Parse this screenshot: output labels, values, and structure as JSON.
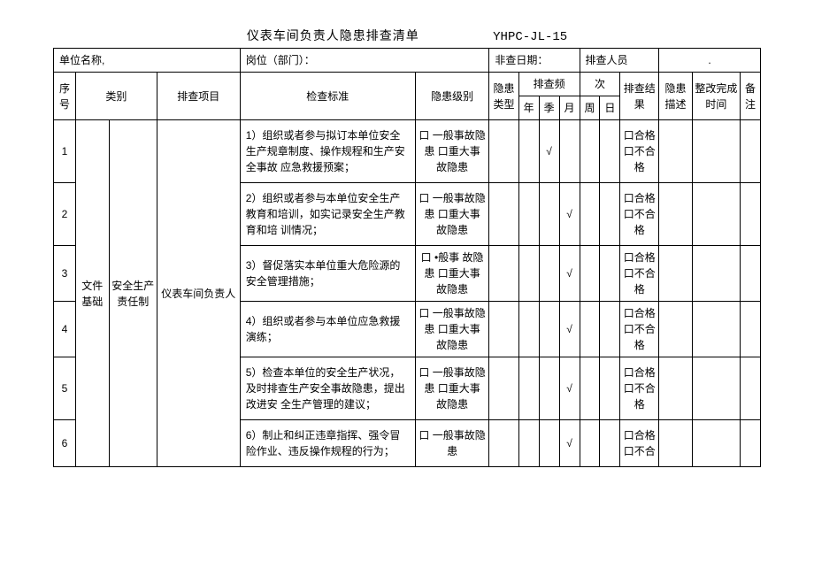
{
  "title": "仪表车间负责人隐患排查清单",
  "doc_code": "YHPC-JL-15",
  "header_labels": {
    "unit_name": "单位名称,",
    "position": "岗位（部门）：",
    "inspect_date": "非查日期：",
    "inspector": "排查人员"
  },
  "columns": {
    "seq": "序号",
    "category": "类别",
    "project": "排查项目",
    "standard": "检查标准",
    "level": "隐患级别",
    "type": "隐患类型",
    "freq": "排查频",
    "freq2": "次",
    "freq_y": "年",
    "freq_q": "季",
    "freq_m": "月",
    "freq_w": "周",
    "freq_d": "日",
    "result": "排查结果",
    "desc": "隐患描述",
    "complete_time": "整改完成 时间",
    "note": "备注"
  },
  "category_group": "文件基础",
  "item_group": "安全生产责任制",
  "project_group": "仪表车间负责人",
  "level_text_a": "口 一般事故隐患  口重大事 故隐患",
  "level_text_b": "口 •般事 故隐患 口重大事 故隐患",
  "level_text_c": "口 一般事故隐患 口重大事 故隐患",
  "level_text_d": "口 一般事故隐患",
  "result_text": "口合格 口不合格",
  "result_text_short": "口合格 口不合",
  "check_mark": "√",
  "rows": [
    {
      "seq": 1,
      "standard": "1）组织或者参与拟订本单位安全生产规章制度、操作规程和生产安全事故 应急救援预案；",
      "level_key": "level_text_a",
      "freq_col": "q",
      "result_key": "result_text"
    },
    {
      "seq": 2,
      "standard": "2）组织或者参与本单位安全生产教育和培训，如实记录安全生产教育和培 训情况；",
      "level_key": "level_text_a",
      "freq_col": "m",
      "result_key": "result_text"
    },
    {
      "seq": 3,
      "standard": "3）督促落实本单位重大危险源的安全管理措施；",
      "level_key": "level_text_b",
      "freq_col": "m",
      "result_key": "result_text"
    },
    {
      "seq": 4,
      "standard": "4）组织或者参与本单位应急救援演练；",
      "level_key": "level_text_a",
      "freq_col": "m",
      "result_key": "result_text"
    },
    {
      "seq": 5,
      "standard": "5）检查本单位的安全生产状况，及时排查生产安全事故隐患，提出改进安 全生产管理的建议；",
      "level_key": "level_text_c",
      "freq_col": "m",
      "result_key": "result_text"
    },
    {
      "seq": 6,
      "standard": "6）制止和纠正违章指挥、强令冒险作业、违反操作规程的行为；",
      "level_key": "level_text_d",
      "freq_col": "m",
      "result_key": "result_text_short"
    }
  ]
}
